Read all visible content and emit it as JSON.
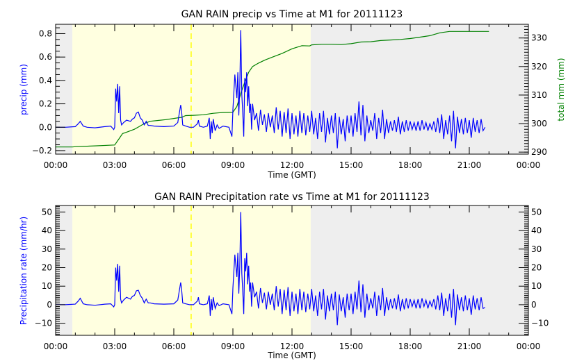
{
  "chart_data": [
    {
      "type": "line",
      "title": "GAN RAIN precip vs Time at M1 for 20111123",
      "xlabel": "Time (GMT)",
      "ylabel": "precip (mm)",
      "y2label": "total mm (mm)",
      "x_ticks": [
        "00:00",
        "03:00",
        "06:00",
        "09:00",
        "12:00",
        "15:00",
        "18:00",
        "21:00",
        "00:00"
      ],
      "y_ticks": [
        "-0.2",
        "0.0",
        "0.2",
        "0.4",
        "0.6",
        "0.8"
      ],
      "y2_ticks": [
        "290",
        "300",
        "310",
        "320",
        "330"
      ],
      "ylim": [
        -0.23,
        0.88
      ],
      "y2lim": [
        289.3,
        334.8
      ],
      "xlim_hours": [
        0,
        24
      ],
      "colors": {
        "precip": "#0000ff",
        "total": "#008000",
        "day_shade": "#ffffe0",
        "night_shade": "#eeeeee",
        "marker": "#ffff00"
      },
      "shaded_regions": [
        {
          "start_hour": 0,
          "end_hour": 0.85,
          "type": "night"
        },
        {
          "start_hour": 0.85,
          "end_hour": 12.95,
          "type": "day"
        },
        {
          "start_hour": 12.95,
          "end_hour": 24,
          "type": "night"
        }
      ],
      "marker_line_hour": 6.88,
      "series": [
        {
          "name": "precip",
          "axis": "left",
          "x_hours": [
            0,
            0.5,
            1.0,
            1.15,
            1.25,
            1.4,
            1.6,
            2.0,
            2.5,
            2.8,
            2.95,
            3.0,
            3.05,
            3.1,
            3.15,
            3.2,
            3.25,
            3.3,
            3.35,
            3.45,
            3.6,
            3.8,
            3.9,
            4.0,
            4.1,
            4.2,
            4.3,
            4.4,
            4.5,
            4.6,
            4.7,
            4.8,
            5.0,
            5.5,
            6.0,
            6.2,
            6.35,
            6.4,
            6.45,
            6.6,
            6.8,
            7.0,
            7.2,
            7.25,
            7.3,
            7.5,
            7.7,
            7.8,
            7.85,
            7.9,
            7.95,
            8.0,
            8.1,
            8.2,
            8.3,
            8.5,
            8.8,
            8.95,
            9.0,
            9.1,
            9.2,
            9.25,
            9.3,
            9.35,
            9.4,
            9.45,
            9.5,
            9.55,
            9.6,
            9.65,
            9.7,
            9.75,
            9.8,
            9.85,
            9.9,
            9.95,
            10.0,
            10.1,
            10.2,
            10.3,
            10.4,
            10.5,
            10.6,
            10.7,
            10.8,
            10.9,
            11.0,
            11.1,
            11.2,
            11.3,
            11.4,
            11.5,
            11.6,
            11.7,
            11.8,
            11.9,
            12.0,
            12.1,
            12.2,
            12.3,
            12.4,
            12.5,
            12.6,
            12.7,
            12.8,
            12.9,
            13.0,
            13.1,
            13.2,
            13.3,
            13.4,
            13.5,
            13.6,
            13.7,
            13.8,
            13.9,
            14.0,
            14.1,
            14.2,
            14.3,
            14.4,
            14.5,
            14.6,
            14.7,
            14.8,
            14.9,
            15.0,
            15.1,
            15.2,
            15.3,
            15.4,
            15.5,
            15.6,
            15.7,
            15.8,
            15.9,
            16.0,
            16.1,
            16.2,
            16.3,
            16.4,
            16.5,
            16.6,
            16.7,
            16.8,
            16.9,
            17.0,
            17.1,
            17.2,
            17.3,
            17.4,
            17.5,
            17.6,
            17.7,
            17.8,
            17.9,
            18.0,
            18.1,
            18.2,
            18.3,
            18.4,
            18.5,
            18.6,
            18.7,
            18.8,
            18.9,
            19.0,
            19.1,
            19.2,
            19.3,
            19.4,
            19.5,
            19.6,
            19.7,
            19.8,
            19.9,
            20.0,
            20.1,
            20.2,
            20.3,
            20.4,
            20.5,
            20.6,
            20.7,
            20.8,
            20.9,
            21.0,
            21.1,
            21.2,
            21.3,
            21.4,
            21.5,
            21.6,
            21.7,
            21.8,
            21.9,
            22.0
          ],
          "values": [
            0,
            0,
            0.005,
            0.03,
            0.05,
            0.01,
            0,
            -0.005,
            0.005,
            0.01,
            -0.02,
            0,
            0.33,
            0.22,
            0.37,
            0.12,
            0.35,
            0.06,
            0.02,
            0.04,
            0.06,
            0.05,
            0.07,
            0.08,
            0.12,
            0.13,
            0.08,
            0.06,
            0.02,
            0.05,
            0.015,
            0.015,
            0.01,
            0.005,
            0.01,
            0.04,
            0.19,
            0.13,
            0.02,
            0.01,
            0.0,
            0.0,
            0.03,
            0.06,
            0.01,
            0.0,
            0.01,
            0.08,
            -0.1,
            0.05,
            -0.05,
            0.07,
            -0.03,
            0.02,
            -0.01,
            0.01,
            0.0,
            -0.08,
            0.15,
            0.45,
            0.25,
            0.47,
            0.1,
            0.35,
            0.83,
            0.28,
            0.12,
            -0.08,
            0.42,
            0.3,
            0.47,
            0.18,
            0.35,
            0.12,
            0.2,
            -0.02,
            0.2,
            0.06,
            0.12,
            -0.03,
            0.15,
            0.02,
            0.11,
            -0.04,
            0.12,
            0.0,
            0.1,
            -0.05,
            0.17,
            -0.02,
            0.14,
            -0.08,
            0.13,
            -0.05,
            0.16,
            -0.1,
            0.12,
            -0.06,
            0.1,
            -0.08,
            0.14,
            -0.05,
            0.12,
            -0.07,
            0.1,
            -0.04,
            0.14,
            -0.06,
            0.08,
            -0.1,
            0.12,
            -0.04,
            0.14,
            -0.13,
            0.08,
            -0.06,
            0.1,
            -0.05,
            0.12,
            -0.18,
            0.09,
            -0.06,
            0.07,
            -0.12,
            0.1,
            -0.05,
            0.1,
            -0.08,
            0.12,
            -0.04,
            0.22,
            -0.07,
            0.19,
            -0.12,
            0.1,
            -0.05,
            0.06,
            -0.03,
            0.12,
            -0.1,
            0.08,
            -0.05,
            0.15,
            -0.1,
            0.07,
            -0.05,
            0.05,
            -0.03,
            0.06,
            -0.04,
            0.09,
            -0.06,
            0.05,
            -0.04,
            0.06,
            -0.03,
            0.05,
            -0.02,
            0.04,
            -0.03,
            0.05,
            -0.03,
            0.06,
            -0.02,
            0.04,
            -0.03,
            0.03,
            -0.02,
            0.05,
            -0.04,
            0.08,
            -0.05,
            0.11,
            -0.1,
            0.06,
            -0.06,
            0.1,
            -0.12,
            0.14,
            -0.18,
            0.09,
            -0.05,
            0.07,
            -0.06,
            0.08,
            -0.05,
            0.06,
            -0.09,
            0.08,
            -0.04,
            0.06,
            -0.05,
            0.07,
            -0.03,
            0.0
          ]
        },
        {
          "name": "total",
          "axis": "right",
          "x_hours": [
            0,
            0.85,
            1.0,
            2.0,
            3.0,
            3.2,
            3.4,
            3.6,
            4.0,
            4.2,
            4.5,
            4.8,
            5.2,
            5.6,
            6.0,
            6.4,
            6.6,
            7.0,
            7.5,
            8.0,
            8.5,
            9.0,
            9.2,
            9.4,
            9.6,
            9.8,
            10.0,
            10.3,
            10.6,
            11.0,
            11.5,
            12.0,
            12.5,
            12.9,
            13.0,
            13.5,
            14.0,
            14.5,
            15.0,
            15.5,
            16.0,
            16.5,
            17.0,
            17.5,
            18.0,
            18.5,
            19.0,
            19.5,
            20.0,
            20.5,
            21.0,
            21.5,
            22.0
          ],
          "values": [
            291.8,
            291.8,
            291.9,
            292.2,
            292.5,
            294.5,
            296.5,
            297.0,
            298.0,
            298.8,
            300.0,
            300.8,
            301.1,
            301.4,
            301.8,
            302.2,
            302.8,
            302.9,
            303.1,
            303.6,
            303.9,
            304.0,
            306.0,
            310.5,
            314.5,
            318.0,
            320.0,
            321.2,
            322.2,
            323.3,
            324.6,
            326.2,
            327.3,
            327.2,
            327.6,
            327.8,
            327.8,
            327.7,
            328.0,
            328.6,
            328.7,
            329.1,
            329.3,
            329.5,
            329.8,
            330.3,
            330.8,
            331.8,
            332.3,
            332.3,
            332.3,
            332.3,
            332.3
          ]
        }
      ]
    },
    {
      "type": "line",
      "title": "GAN RAIN Precipitation rate vs Time at M1 for 20111123",
      "xlabel": "Time (GMT)",
      "ylabel": "Precipitation rate (mm/hr)",
      "x_ticks": [
        "00:00",
        "03:00",
        "06:00",
        "09:00",
        "12:00",
        "15:00",
        "18:00",
        "21:00",
        "00:00"
      ],
      "y_ticks": [
        "-10",
        "0",
        "10",
        "20",
        "30",
        "40",
        "50"
      ],
      "y2_ticks": [
        "-10",
        "0",
        "10",
        "20",
        "30",
        "40",
        "50"
      ],
      "ylim": [
        -16.5,
        53.5
      ],
      "xlim_hours": [
        0,
        24
      ],
      "colors": {
        "rate": "#0000ff",
        "day_shade": "#ffffe0",
        "night_shade": "#eeeeee",
        "marker": "#ffff00"
      },
      "shaded_regions": [
        {
          "start_hour": 0,
          "end_hour": 0.85,
          "type": "night"
        },
        {
          "start_hour": 0.85,
          "end_hour": 12.95,
          "type": "day"
        },
        {
          "start_hour": 12.95,
          "end_hour": 24,
          "type": "night"
        }
      ],
      "marker_line_hour": 6.88,
      "series": [
        {
          "name": "Precipitation rate",
          "axis": "left",
          "x_hours": [
            0,
            0.5,
            1.0,
            1.15,
            1.25,
            1.4,
            1.6,
            2.0,
            2.5,
            2.8,
            2.95,
            3.0,
            3.05,
            3.1,
            3.15,
            3.2,
            3.25,
            3.3,
            3.35,
            3.45,
            3.6,
            3.8,
            3.9,
            4.0,
            4.1,
            4.2,
            4.3,
            4.4,
            4.5,
            4.6,
            4.7,
            4.8,
            5.0,
            5.5,
            6.0,
            6.2,
            6.35,
            6.4,
            6.45,
            6.6,
            6.8,
            7.0,
            7.2,
            7.25,
            7.3,
            7.5,
            7.7,
            7.8,
            7.85,
            7.9,
            7.95,
            8.0,
            8.1,
            8.2,
            8.3,
            8.5,
            8.8,
            8.95,
            9.0,
            9.1,
            9.2,
            9.25,
            9.3,
            9.35,
            9.4,
            9.45,
            9.5,
            9.55,
            9.6,
            9.65,
            9.7,
            9.75,
            9.8,
            9.85,
            9.9,
            9.95,
            10.0,
            10.1,
            10.2,
            10.3,
            10.4,
            10.5,
            10.6,
            10.7,
            10.8,
            10.9,
            11.0,
            11.1,
            11.2,
            11.3,
            11.4,
            11.5,
            11.6,
            11.7,
            11.8,
            11.9,
            12.0,
            12.1,
            12.2,
            12.3,
            12.4,
            12.5,
            12.6,
            12.7,
            12.8,
            12.9,
            13.0,
            13.1,
            13.2,
            13.3,
            13.4,
            13.5,
            13.6,
            13.7,
            13.8,
            13.9,
            14.0,
            14.1,
            14.2,
            14.3,
            14.4,
            14.5,
            14.6,
            14.7,
            14.8,
            14.9,
            15.0,
            15.1,
            15.2,
            15.3,
            15.4,
            15.5,
            15.6,
            15.7,
            15.8,
            15.9,
            16.0,
            16.1,
            16.2,
            16.3,
            16.4,
            16.5,
            16.6,
            16.7,
            16.8,
            16.9,
            17.0,
            17.1,
            17.2,
            17.3,
            17.4,
            17.5,
            17.6,
            17.7,
            17.8,
            17.9,
            18.0,
            18.1,
            18.2,
            18.3,
            18.4,
            18.5,
            18.6,
            18.7,
            18.8,
            18.9,
            19.0,
            19.1,
            19.2,
            19.3,
            19.4,
            19.5,
            19.6,
            19.7,
            19.8,
            19.9,
            20.0,
            20.1,
            20.2,
            20.3,
            20.4,
            20.5,
            20.6,
            20.7,
            20.8,
            20.9,
            21.0,
            21.1,
            21.2,
            21.3,
            21.4,
            21.5,
            21.6,
            21.7,
            21.8,
            21.9,
            22.0
          ],
          "values": [
            0,
            0,
            0.3,
            2,
            3.5,
            0.5,
            0,
            -0.3,
            0.3,
            0.5,
            -1.2,
            0,
            20,
            13,
            22,
            7,
            21,
            3,
            1,
            2.5,
            4,
            3,
            4.5,
            5,
            7.5,
            7.8,
            5,
            3.5,
            1,
            3,
            1,
            1,
            0.5,
            0.3,
            0.5,
            2.5,
            12,
            8,
            1,
            0.5,
            0,
            0,
            2,
            4,
            0.5,
            0,
            0.5,
            5,
            -6,
            3,
            -3,
            4,
            -2,
            1,
            -0.5,
            0.5,
            0,
            -5,
            9,
            27,
            15,
            28,
            6,
            21,
            50,
            17,
            7,
            -5,
            25,
            18,
            28,
            11,
            21,
            7,
            12,
            -1,
            12,
            4,
            7,
            -2,
            9,
            1,
            6.5,
            -2.5,
            7,
            0,
            6,
            -3,
            10,
            -1,
            8.5,
            -5,
            8,
            -3,
            9.5,
            -6,
            7,
            -3.5,
            6,
            -5,
            8.5,
            -3,
            7,
            -4,
            6,
            -2.5,
            8.5,
            -3.5,
            5,
            -6,
            7,
            -2.5,
            8.5,
            -8,
            5,
            -3.5,
            6,
            -3,
            7,
            -11,
            5.5,
            -3.5,
            4,
            -7,
            6,
            -3,
            6,
            -5,
            7,
            -2.5,
            13,
            -4,
            11,
            -7,
            6,
            -3,
            3.5,
            -2,
            7,
            -6,
            5,
            -3,
            9,
            -6,
            4,
            -3,
            3,
            -2,
            3.5,
            -2.5,
            5.5,
            -3.5,
            3,
            -2.5,
            3.5,
            -2,
            3,
            -1,
            2.5,
            -2,
            3,
            -2,
            3.5,
            -1,
            2.5,
            -2,
            2,
            -1,
            3,
            -2.5,
            5,
            -3,
            6.5,
            -6,
            3.5,
            -3.5,
            6,
            -7,
            8.5,
            -11,
            5.5,
            -3,
            4,
            -3.5,
            5,
            -3,
            3.5,
            -5.5,
            5,
            -2.5,
            3.5,
            -3,
            4,
            -2,
            -1.5
          ]
        }
      ]
    }
  ]
}
